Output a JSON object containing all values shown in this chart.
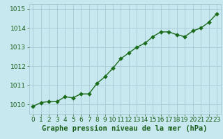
{
  "x": [
    0,
    1,
    2,
    3,
    4,
    5,
    6,
    7,
    8,
    9,
    10,
    11,
    12,
    13,
    14,
    15,
    16,
    17,
    18,
    19,
    20,
    21,
    22,
    23
  ],
  "y": [
    1009.9,
    1010.1,
    1010.15,
    1010.15,
    1010.4,
    1010.35,
    1010.55,
    1010.55,
    1011.1,
    1011.45,
    1011.9,
    1012.4,
    1012.7,
    1013.0,
    1013.2,
    1013.55,
    1013.8,
    1013.8,
    1013.65,
    1013.55,
    1013.85,
    1014.0,
    1014.3,
    1014.75
  ],
  "line_color": "#1a6b1a",
  "marker_color": "#1a6b1a",
  "bg_color": "#c8e8f0",
  "grid_color": "#a8c8d8",
  "xlabel": "Graphe pression niveau de la mer (hPa)",
  "xlabel_color": "#1a5f1a",
  "tick_color": "#1a5f1a",
  "ylim": [
    1009.5,
    1015.25
  ],
  "yticks": [
    1010,
    1011,
    1012,
    1013,
    1014,
    1015
  ],
  "xticks": [
    0,
    1,
    2,
    3,
    4,
    5,
    6,
    7,
    8,
    9,
    10,
    11,
    12,
    13,
    14,
    15,
    16,
    17,
    18,
    19,
    20,
    21,
    22,
    23
  ],
  "marker_size": 3.0,
  "line_width": 1.0,
  "font_size_tick": 6.5,
  "font_size_xlabel": 7.5
}
